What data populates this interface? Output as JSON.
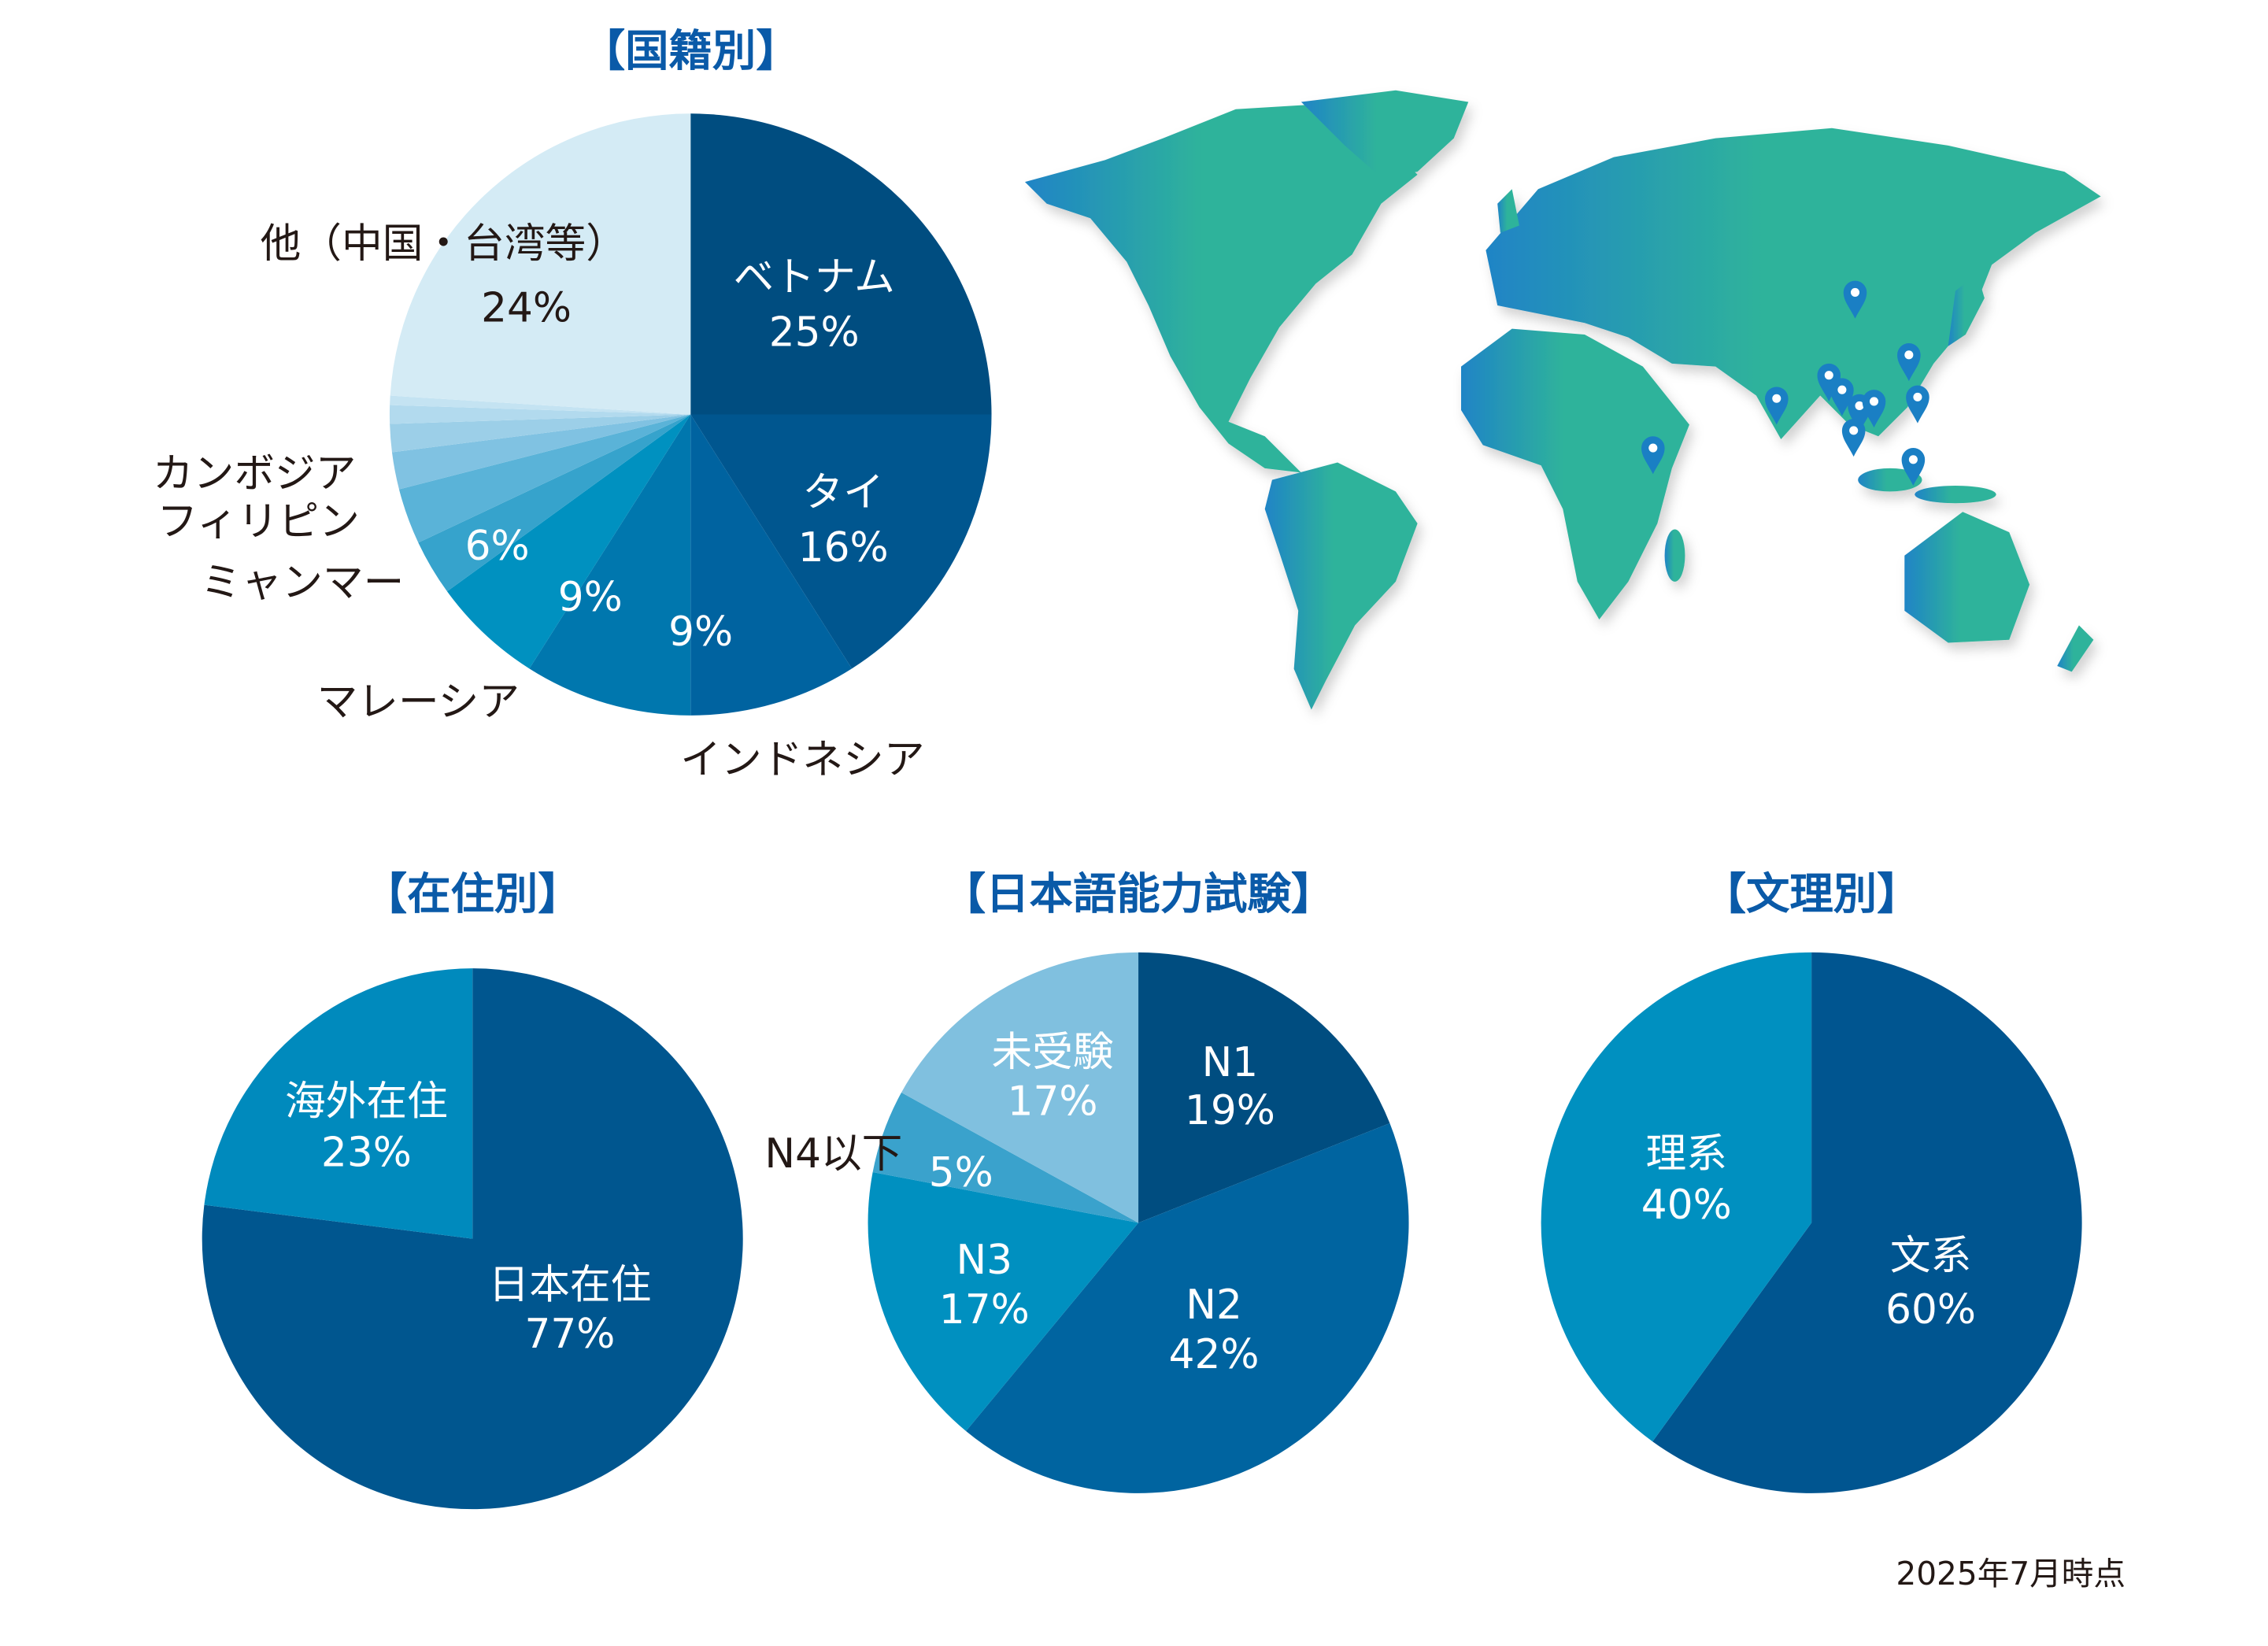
{
  "chart_data": [
    {
      "type": "pie",
      "title": "【国籍別】",
      "slices": [
        {
          "label": "ベトナム",
          "value": 25,
          "value_label": "25%",
          "color": "#004d80"
        },
        {
          "label": "タイ",
          "value": 16,
          "value_label": "16%",
          "color": "#00568f"
        },
        {
          "label": "インドネシア",
          "value": 9,
          "value_label": "9%",
          "color": "#0063a0"
        },
        {
          "label": "マレーシア",
          "value": 9,
          "value_label": "9%",
          "color": "#0077ae"
        },
        {
          "label": "ミャンマー",
          "value": 6,
          "value_label": "6%",
          "color": "#0091c0"
        },
        {
          "label": "フィリピン",
          "value": 3,
          "color": "#36a3cc"
        },
        {
          "label": "カンボジア",
          "value": 3,
          "color": "#5ab3d8"
        },
        {
          "label": "",
          "value": 2,
          "color": "#80c2e2"
        },
        {
          "label": "",
          "value": 1.5,
          "color": "#9ccfe8"
        },
        {
          "label": "",
          "value": 1,
          "color": "#b2daee"
        },
        {
          "label": "",
          "value": 0.5,
          "color": "#c4e3f2"
        },
        {
          "label": "他（中国・台湾等）",
          "value": 24,
          "value_label": "24%",
          "color": "#d4ebf5"
        }
      ]
    },
    {
      "type": "pie",
      "title": "【在住別】",
      "slices": [
        {
          "label": "日本在住",
          "value": 77,
          "value_label": "77%",
          "color": "#00568f"
        },
        {
          "label": "海外在住",
          "value": 23,
          "value_label": "23%",
          "color": "#008abd"
        }
      ]
    },
    {
      "type": "pie",
      "title": "【日本語能力試験】",
      "slices": [
        {
          "label": "N1",
          "value": 19,
          "value_label": "19%",
          "color": "#004d80"
        },
        {
          "label": "N2",
          "value": 42,
          "value_label": "42%",
          "color": "#0064a0"
        },
        {
          "label": "N3",
          "value": 17,
          "value_label": "17%",
          "color": "#0090c0"
        },
        {
          "label": "N4以下",
          "value": 5,
          "value_label": "5%",
          "color": "#3aa2cc"
        },
        {
          "label": "未受験",
          "value": 17,
          "value_label": "17%",
          "color": "#80c0df"
        }
      ]
    },
    {
      "type": "pie",
      "title": "【文理別】",
      "slices": [
        {
          "label": "文系",
          "value": 60,
          "value_label": "60%",
          "color": "#005590"
        },
        {
          "label": "理系",
          "value": 40,
          "value_label": "40%",
          "color": "#0090c0"
        }
      ]
    }
  ],
  "map": {
    "gradient_start": "#1f84c6",
    "gradient_end": "#2fb39b",
    "pin_color": "#1a7fc4",
    "pin_count": 11
  },
  "footer": {
    "as_of": "2025年7月時点"
  }
}
